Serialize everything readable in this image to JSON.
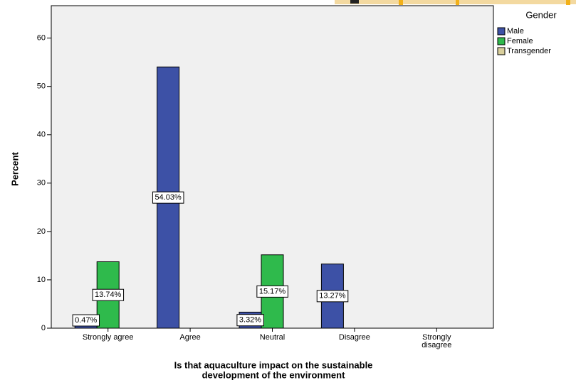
{
  "chart_data": {
    "type": "bar",
    "ylabel": "Percent",
    "xlabel": [
      "Is that aquaculture impact on the sustainable",
      "development of the environment"
    ],
    "legend_title": "Gender",
    "legend_position": "top-right",
    "categories": [
      "Strongly agree",
      "Agree",
      "Neutral",
      "Disagree",
      "Strongly\ndisagree"
    ],
    "series": [
      {
        "name": "Male",
        "color": "#3d51a6",
        "values": [
          0.47,
          54.03,
          3.32,
          13.27,
          null
        ],
        "value_labels": [
          "0.47%",
          "54.03%",
          "3.32%",
          "13.27%",
          null
        ]
      },
      {
        "name": "Female",
        "color": "#2fba4c",
        "values": [
          13.74,
          null,
          15.17,
          null,
          null
        ],
        "value_labels": [
          "13.74%",
          null,
          "15.17%",
          null,
          null
        ]
      },
      {
        "name": "Transgender",
        "color": "#d9cf9c",
        "values": [
          null,
          null,
          null,
          null,
          null
        ],
        "value_labels": [
          null,
          null,
          null,
          null,
          null
        ]
      }
    ],
    "ylim": [
      0,
      66.7
    ],
    "yticks": [
      0,
      10,
      20,
      30,
      40,
      50,
      60
    ],
    "grid": false
  }
}
